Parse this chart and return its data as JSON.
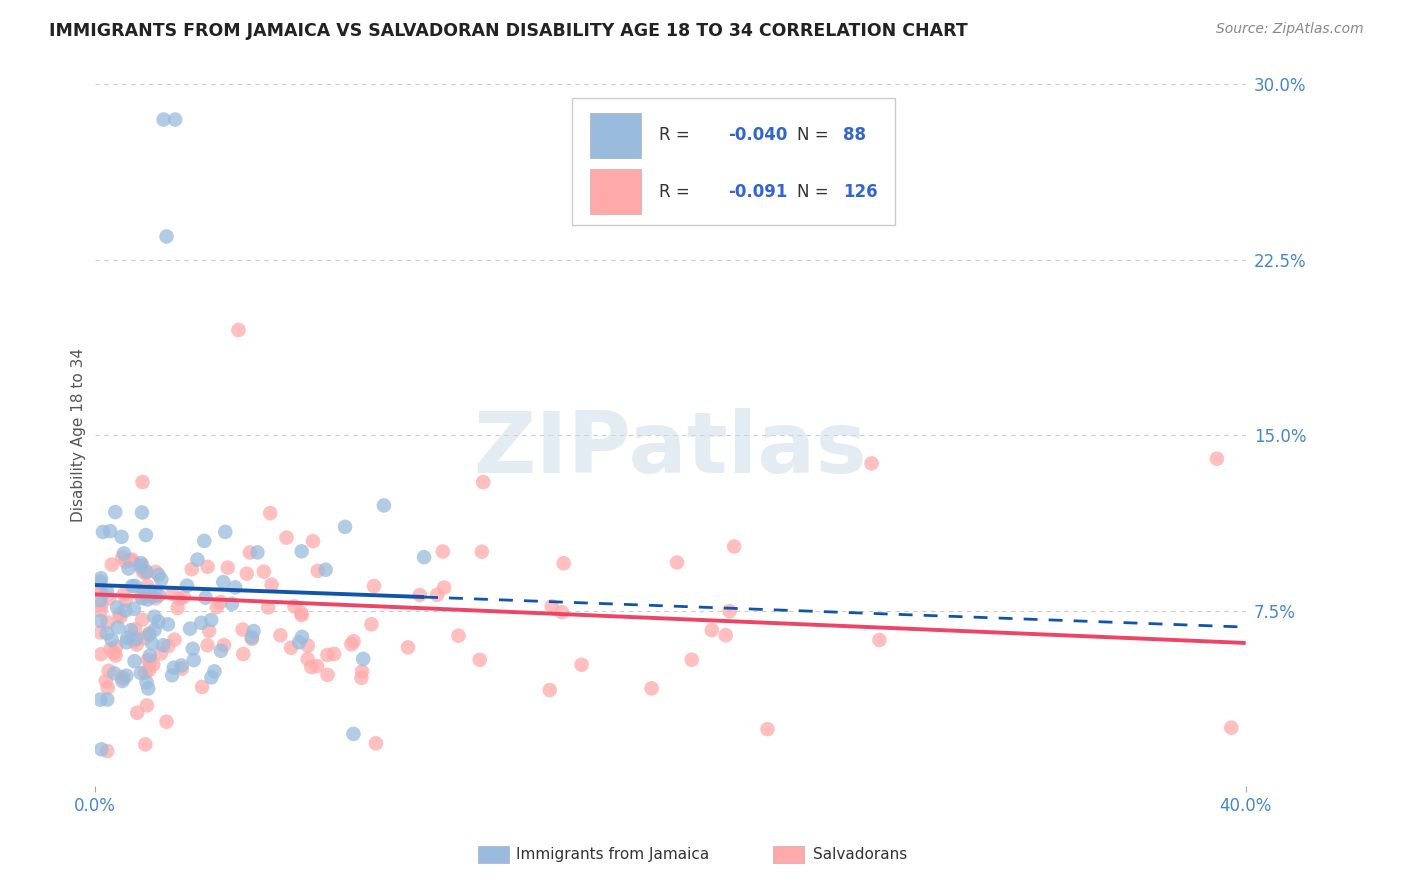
{
  "title": "IMMIGRANTS FROM JAMAICA VS SALVADORAN DISABILITY AGE 18 TO 34 CORRELATION CHART",
  "source": "Source: ZipAtlas.com",
  "ylabel": "Disability Age 18 to 34",
  "xlim": [
    0.0,
    0.4
  ],
  "ylim": [
    0.0,
    0.3
  ],
  "xtick_labels": [
    "0.0%",
    "40.0%"
  ],
  "ytick_labels": [
    "7.5%",
    "15.0%",
    "22.5%",
    "30.0%"
  ],
  "ytick_values": [
    0.075,
    0.15,
    0.225,
    0.3
  ],
  "watermark_text": "ZIPatlas",
  "blue_color": "#99BBDD",
  "pink_color": "#FFAAAA",
  "blue_line_color": "#1155AA",
  "pink_line_color": "#EE4466",
  "grid_color": "#CCCCCC",
  "title_color": "#222222",
  "tick_color": "#4488CC",
  "source_color": "#888888",
  "legend_text_color": "#333333",
  "legend_num_color": "#3366CC",
  "bottom_legend_color": "#333333"
}
